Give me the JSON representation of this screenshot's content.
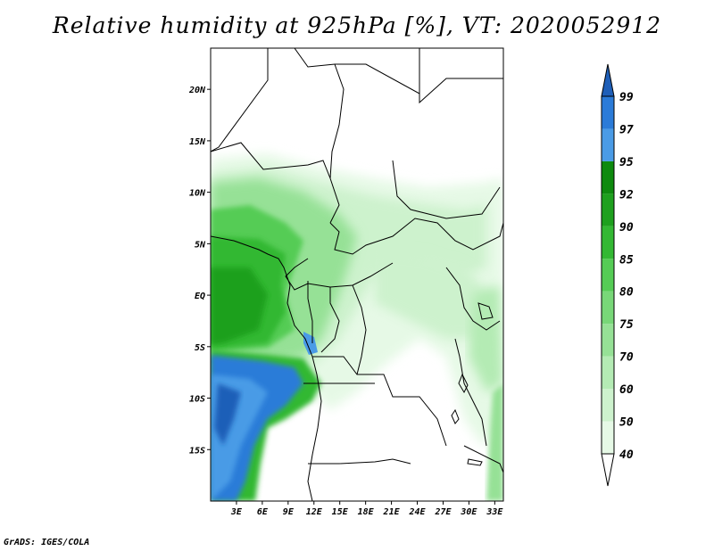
{
  "title": "Relative humidity at 925hPa [%], VT: 2020052912",
  "credit": "GrADS: IGES/COLA",
  "map": {
    "lon_range": [
      0,
      34
    ],
    "lat_range": [
      -20,
      24
    ],
    "lat_ticks": [
      {
        "v": 20,
        "label": "20N"
      },
      {
        "v": 15,
        "label": "15N"
      },
      {
        "v": 10,
        "label": "10N"
      },
      {
        "v": 5,
        "label": "5N"
      },
      {
        "v": 0,
        "label": "EQ"
      },
      {
        "v": -5,
        "label": "5S"
      },
      {
        "v": -10,
        "label": "10S"
      },
      {
        "v": -15,
        "label": "15S"
      }
    ],
    "lon_ticks": [
      {
        "v": 3,
        "label": "3E"
      },
      {
        "v": 6,
        "label": "6E"
      },
      {
        "v": 9,
        "label": "9E"
      },
      {
        "v": 12,
        "label": "12E"
      },
      {
        "v": 15,
        "label": "15E"
      },
      {
        "v": 18,
        "label": "18E"
      },
      {
        "v": 21,
        "label": "21E"
      },
      {
        "v": 24,
        "label": "24E"
      },
      {
        "v": 27,
        "label": "27E"
      },
      {
        "v": 30,
        "label": "30E"
      },
      {
        "v": 33,
        "label": "33E"
      }
    ]
  },
  "colorbar": {
    "levels": [
      "40",
      "50",
      "60",
      "70",
      "75",
      "80",
      "85",
      "90",
      "92",
      "95",
      "97",
      "99"
    ],
    "colors": [
      "#ffffff",
      "#e6f9e6",
      "#cdf2cd",
      "#b4ebb4",
      "#96e196",
      "#78d778",
      "#55cc55",
      "#33b833",
      "#1ea01e",
      "#0e8a0e",
      "#4a9be6",
      "#2b7bd8",
      "#1f5fb8"
    ]
  },
  "colors": {
    "frame": "#000000",
    "border": "#000000"
  }
}
